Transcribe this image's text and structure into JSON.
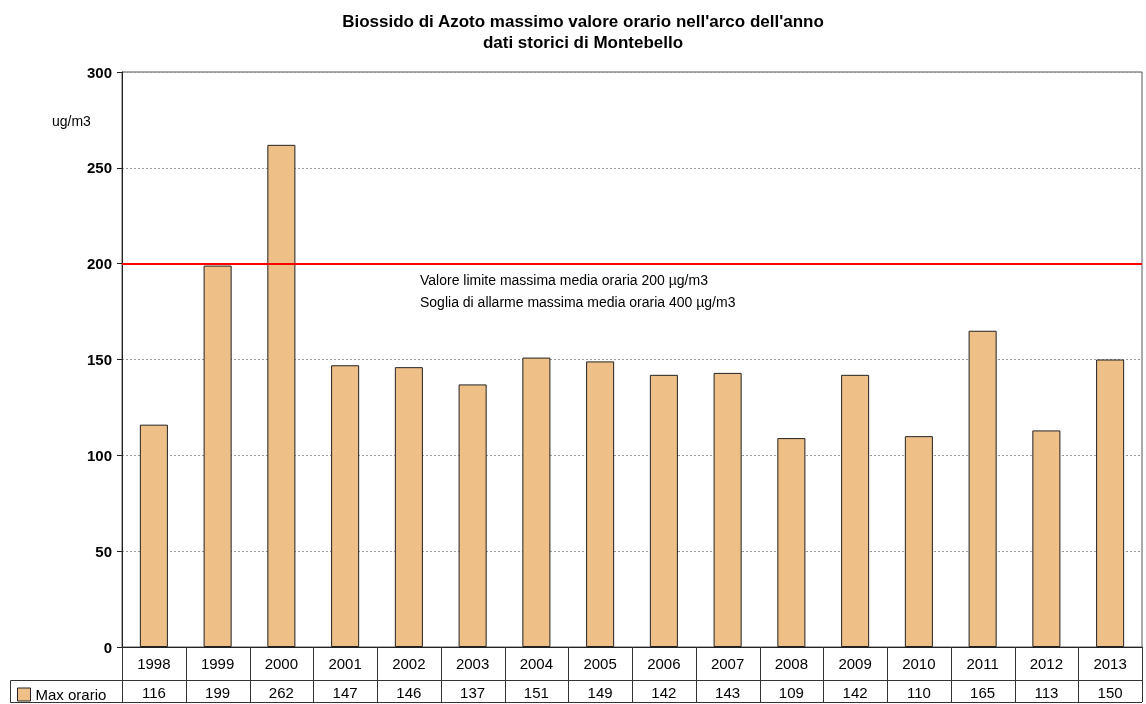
{
  "chart_data": {
    "type": "bar",
    "title": "Biossido di Azoto massimo valore orario nell'arco dell'anno",
    "subtitle": "dati storici di Montebello",
    "ylabel": "ug/m3",
    "categories": [
      "1998",
      "1999",
      "2000",
      "2001",
      "2002",
      "2003",
      "2004",
      "2005",
      "2006",
      "2007",
      "2008",
      "2009",
      "2010",
      "2011",
      "2012",
      "2013"
    ],
    "series": [
      {
        "name": "Max orario",
        "color": "#efbf88",
        "values": [
          116,
          199,
          262,
          147,
          146,
          137,
          151,
          149,
          142,
          143,
          109,
          142,
          110,
          165,
          113,
          150
        ]
      }
    ],
    "ylim": [
      0,
      300
    ],
    "yticks": [
      0,
      50,
      100,
      150,
      200,
      250,
      300
    ],
    "grid": "y",
    "legend": "bottom left",
    "data_labels": true,
    "ref_lines": [
      {
        "axis": "y",
        "value": 200,
        "color": "#ff0000"
      }
    ],
    "annotations": [
      "Valore limite massima media oraria 200 µg/m3",
      "Soglia di allarme massima media oraria 400 µg/m3"
    ]
  }
}
